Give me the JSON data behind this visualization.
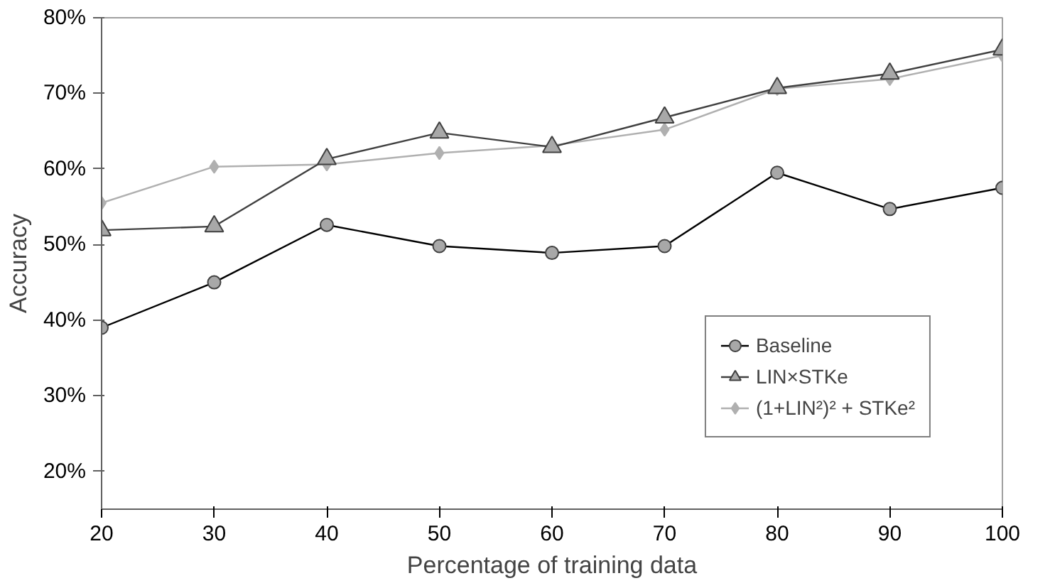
{
  "chart_data": {
    "type": "line",
    "xlabel": "Percentage of training data",
    "ylabel": "Accuracy",
    "x": [
      20,
      30,
      40,
      50,
      60,
      70,
      80,
      90,
      100
    ],
    "xlim": [
      20,
      100
    ],
    "xticks": [
      20,
      30,
      40,
      50,
      60,
      70,
      80,
      90,
      100
    ],
    "ylim": [
      0.15,
      0.8
    ],
    "yticks": [
      {
        "value": 0.2,
        "label": "20%"
      },
      {
        "value": 0.3,
        "label": "30%"
      },
      {
        "value": 0.4,
        "label": "40%"
      },
      {
        "value": 0.5,
        "label": "50%"
      },
      {
        "value": 0.6,
        "label": "60%"
      },
      {
        "value": 0.7,
        "label": "70%"
      },
      {
        "value": 0.8,
        "label": "80%"
      }
    ],
    "grid": false,
    "legend": "bottom right",
    "series": [
      {
        "name": "Baseline",
        "color": "#000000",
        "marker": "circle",
        "values": [
          0.39,
          0.45,
          0.526,
          0.498,
          0.489,
          0.498,
          0.595,
          0.547,
          0.575
        ]
      },
      {
        "name": "LIN×STKe",
        "color": "#404040",
        "marker": "triangle",
        "values": [
          0.519,
          0.524,
          0.613,
          0.648,
          0.629,
          0.668,
          0.707,
          0.726,
          0.758
        ]
      },
      {
        "name": "(1+LIN²)² + STKe²",
        "color": "#b0b0b0",
        "marker": "diamond",
        "values": [
          0.555,
          0.603,
          0.606,
          0.621,
          0.631,
          0.652,
          0.706,
          0.719,
          0.75
        ]
      }
    ]
  }
}
